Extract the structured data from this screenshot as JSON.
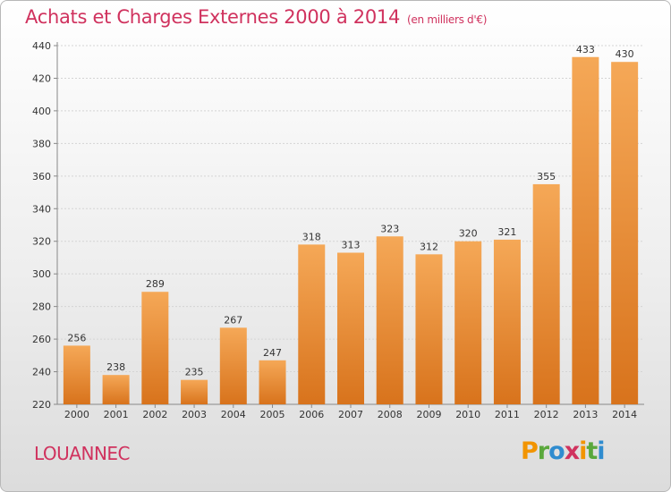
{
  "title": "Achats et Charges Externes 2000 à 2014",
  "subtitle": "(en milliers d'€)",
  "place": "LOUANNEC",
  "logo": {
    "text": "Proxiti",
    "letters": [
      "P",
      "r",
      "o",
      "x",
      "i",
      "t",
      "i"
    ],
    "colors": [
      "#f29400",
      "#5aa83c",
      "#2f8ccf",
      "#d0325e",
      "#f29400",
      "#5aa83c",
      "#2f8ccf"
    ]
  },
  "colors": {
    "bar_top": "#f5a857",
    "bar_bottom": "#d8731c",
    "accent": "#d0325e"
  },
  "chart_data": {
    "type": "bar",
    "categories": [
      "2000",
      "2001",
      "2002",
      "2003",
      "2004",
      "2005",
      "2006",
      "2007",
      "2008",
      "2009",
      "2010",
      "2011",
      "2012",
      "2013",
      "2014"
    ],
    "values": [
      256,
      238,
      289,
      235,
      267,
      247,
      318,
      313,
      323,
      312,
      320,
      321,
      355,
      433,
      430
    ],
    "ylim": [
      220,
      440
    ],
    "yticks": [
      220,
      240,
      260,
      280,
      300,
      320,
      340,
      360,
      380,
      400,
      420,
      440
    ],
    "grid": true,
    "title": "Achats et Charges Externes 2000 à 2014",
    "xlabel": "",
    "ylabel": ""
  }
}
